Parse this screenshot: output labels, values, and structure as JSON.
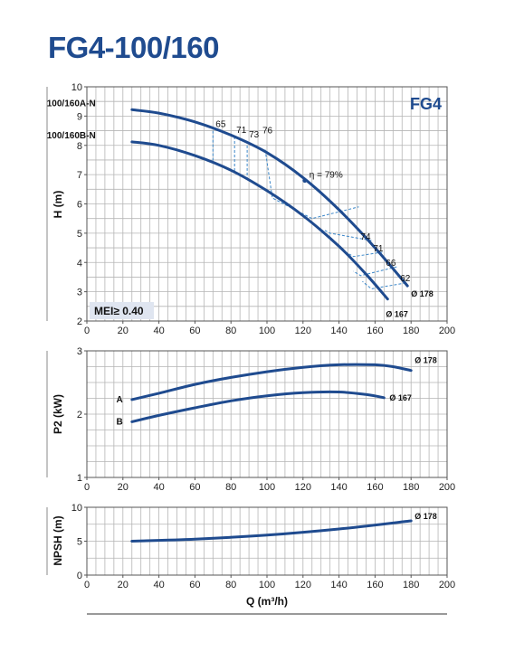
{
  "title": "FG4-100/160",
  "colors": {
    "brand": "#1f4b8f",
    "curve": "#1f4b8f",
    "efficiency": "#3a86c8",
    "mei_box": "#dfe5f0"
  },
  "chart_data": [
    {
      "type": "line",
      "id": "head",
      "ylabel": "H (m)",
      "xlabel": "",
      "xlim": [
        0,
        200
      ],
      "ylim": [
        2,
        10
      ],
      "x_ticks": [
        0,
        20,
        40,
        60,
        80,
        100,
        120,
        140,
        160,
        180,
        200
      ],
      "y_ticks": [
        2,
        3,
        4,
        5,
        6,
        7,
        8,
        9,
        10
      ],
      "grid": true,
      "badge": "FG4",
      "mei_label": "MEI≥ 0.40",
      "series": [
        {
          "name": "100/160A-N",
          "end_label": "Ø 178",
          "points": [
            [
              25,
              9.22
            ],
            [
              40,
              9.1
            ],
            [
              60,
              8.8
            ],
            [
              80,
              8.35
            ],
            [
              100,
              7.75
            ],
            [
              120,
              6.9
            ],
            [
              140,
              5.8
            ],
            [
              160,
              4.5
            ],
            [
              178,
              3.2
            ]
          ]
        },
        {
          "name": "100/160B-N",
          "end_label": "Ø 167",
          "points": [
            [
              25,
              8.12
            ],
            [
              40,
              8.0
            ],
            [
              60,
              7.65
            ],
            [
              80,
              7.15
            ],
            [
              100,
              6.45
            ],
            [
              120,
              5.6
            ],
            [
              140,
              4.55
            ],
            [
              155,
              3.6
            ],
            [
              167,
              2.75
            ]
          ]
        }
      ],
      "efficiency_contours": [
        {
          "label": "65",
          "points": [
            [
              70,
              8.5
            ],
            [
              70,
              7.45
            ]
          ]
        },
        {
          "label": "71",
          "points": [
            [
              82,
              8.3
            ],
            [
              82,
              7.05
            ]
          ]
        },
        {
          "label": "73",
          "points": [
            [
              89,
              8.15
            ],
            [
              89,
              6.8
            ]
          ]
        },
        {
          "label": "76",
          "points": [
            [
              99,
              7.85
            ],
            [
              103,
              6.2
            ],
            [
              125,
              5.5
            ],
            [
              151,
              5.9
            ]
          ]
        },
        {
          "label": "74",
          "points": [
            [
              158,
              4.75
            ],
            [
              135,
              5.0
            ],
            [
              132,
              5.1
            ]
          ]
        },
        {
          "label": "71",
          "points": [
            [
              164,
              4.35
            ],
            [
              148,
              4.2
            ],
            [
              140,
              4.5
            ]
          ]
        },
        {
          "label": "66",
          "points": [
            [
              172,
              3.85
            ],
            [
              152,
              3.55
            ],
            [
              148,
              3.7
            ]
          ]
        },
        {
          "label": "62",
          "points": [
            [
              177,
              3.3
            ],
            [
              158,
              3.1
            ],
            [
              153,
              3.35
            ]
          ]
        }
      ],
      "bep": {
        "label": "η = 79%",
        "point": [
          121,
          6.8
        ]
      }
    },
    {
      "type": "line",
      "id": "power",
      "ylabel": "P2 (kW)",
      "xlabel": "",
      "xlim": [
        0,
        200
      ],
      "ylim": [
        1,
        3
      ],
      "x_ticks": [
        0,
        20,
        40,
        60,
        80,
        100,
        120,
        140,
        160,
        180,
        200
      ],
      "y_ticks": [
        1,
        2,
        3
      ],
      "grid": true,
      "series": [
        {
          "name": "A",
          "end_label": "Ø 178",
          "points": [
            [
              25,
              2.23
            ],
            [
              40,
              2.33
            ],
            [
              60,
              2.47
            ],
            [
              80,
              2.58
            ],
            [
              100,
              2.67
            ],
            [
              120,
              2.74
            ],
            [
              140,
              2.78
            ],
            [
              160,
              2.78
            ],
            [
              170,
              2.75
            ],
            [
              180,
              2.69
            ]
          ]
        },
        {
          "name": "B",
          "end_label": "Ø 167",
          "points": [
            [
              25,
              1.88
            ],
            [
              40,
              1.98
            ],
            [
              60,
              2.1
            ],
            [
              80,
              2.21
            ],
            [
              100,
              2.29
            ],
            [
              120,
              2.34
            ],
            [
              140,
              2.35
            ],
            [
              155,
              2.31
            ],
            [
              165,
              2.26
            ]
          ]
        }
      ]
    },
    {
      "type": "line",
      "id": "npsh",
      "ylabel": "NPSH (m)",
      "xlabel": "Q (m³/h)",
      "xlim": [
        0,
        200
      ],
      "ylim": [
        0,
        10
      ],
      "x_ticks": [
        0,
        20,
        40,
        60,
        80,
        100,
        120,
        140,
        160,
        180,
        200
      ],
      "y_ticks": [
        0,
        5,
        10
      ],
      "grid": true,
      "series": [
        {
          "name": "",
          "end_label": "Ø 178",
          "points": [
            [
              25,
              5.0
            ],
            [
              60,
              5.3
            ],
            [
              100,
              5.9
            ],
            [
              140,
              6.8
            ],
            [
              180,
              8.0
            ]
          ]
        }
      ]
    }
  ]
}
